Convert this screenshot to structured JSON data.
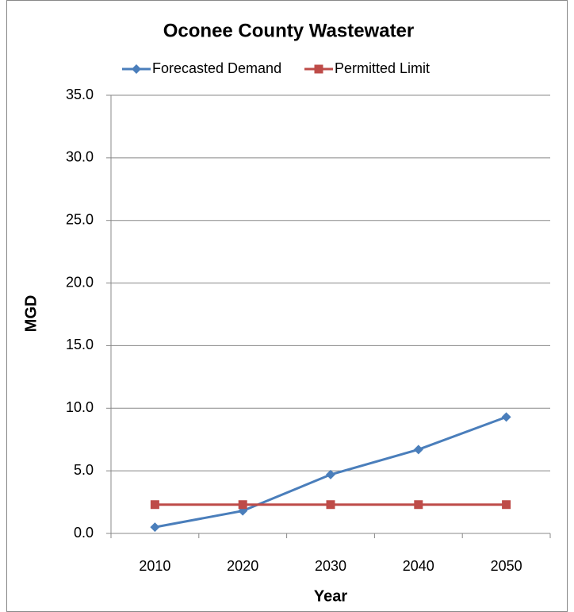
{
  "chart_data": {
    "type": "line",
    "title": "Oconee County Wastewater",
    "x_label": "Year",
    "y_label": "MGD",
    "categories": [
      "2010",
      "2020",
      "2030",
      "2040",
      "2050"
    ],
    "series": [
      {
        "name": "Forecasted Demand",
        "color": "#4a7ebb",
        "marker": "diamond",
        "values": [
          0.5,
          1.8,
          4.7,
          6.7,
          9.3
        ]
      },
      {
        "name": "Permitted Limit",
        "color": "#be4b48",
        "marker": "square",
        "values": [
          2.3,
          2.3,
          2.3,
          2.3,
          2.3
        ]
      }
    ],
    "ylim": [
      0,
      35
    ],
    "yticks": [
      {
        "value": 0,
        "label": "0.0"
      },
      {
        "value": 5,
        "label": "5.0"
      },
      {
        "value": 10,
        "label": "10.0"
      },
      {
        "value": 15,
        "label": "15.0"
      },
      {
        "value": 20,
        "label": "20.0"
      },
      {
        "value": 25,
        "label": "25.0"
      },
      {
        "value": 30,
        "label": "30.0"
      },
      {
        "value": 35,
        "label": "35.0"
      }
    ],
    "grid": true,
    "legend": "top"
  }
}
